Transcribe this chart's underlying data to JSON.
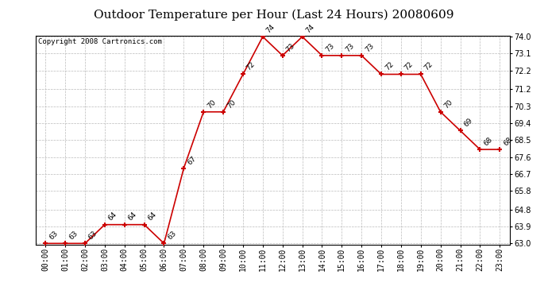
{
  "title": "Outdoor Temperature per Hour (Last 24 Hours) 20080609",
  "copyright": "Copyright 2008 Cartronics.com",
  "hours": [
    "00:00",
    "01:00",
    "02:00",
    "03:00",
    "04:00",
    "05:00",
    "06:00",
    "07:00",
    "08:00",
    "09:00",
    "10:00",
    "11:00",
    "12:00",
    "13:00",
    "14:00",
    "15:00",
    "16:00",
    "17:00",
    "18:00",
    "19:00",
    "20:00",
    "21:00",
    "22:00",
    "23:00"
  ],
  "temps": [
    63,
    63,
    63,
    64,
    64,
    64,
    63,
    67,
    70,
    70,
    72,
    74,
    73,
    74,
    73,
    73,
    73,
    72,
    72,
    72,
    70,
    69,
    68,
    68
  ],
  "ylim_min": 63.0,
  "ylim_max": 74.0,
  "yticks": [
    63.0,
    63.9,
    64.8,
    65.8,
    66.7,
    67.6,
    68.5,
    69.4,
    70.3,
    71.2,
    72.2,
    73.1,
    74.0
  ],
  "line_color": "#cc0000",
  "marker_color": "#cc0000",
  "grid_color": "#bbbbbb",
  "bg_color": "#ffffff",
  "title_fontsize": 11,
  "copyright_fontsize": 6.5,
  "label_fontsize": 6.5,
  "tick_fontsize": 7
}
